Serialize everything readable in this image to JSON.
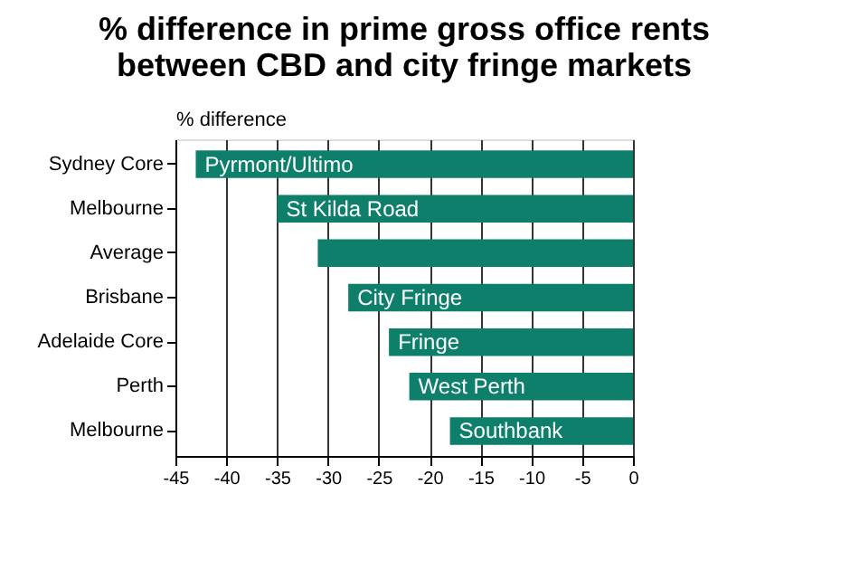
{
  "chart_data": {
    "type": "bar",
    "orientation": "horizontal",
    "title": "% difference in prime gross office rents\nbetween CBD and city fringe markets",
    "xlabel": "% difference",
    "categories": [
      "Sydney Core",
      "Melbourne",
      "Average",
      "Brisbane",
      "Adelaide Core",
      "Perth",
      "Melbourne"
    ],
    "values": [
      -43,
      -35,
      -31,
      -28,
      -24,
      -22,
      -18
    ],
    "value_labels": [
      "Pyrmont/Ultimo",
      "St Kilda Road",
      null,
      "City Fringe",
      "Fringe",
      "West Perth",
      "Southbank"
    ],
    "color": "#0e7f6b",
    "xlim": [
      -45,
      0
    ],
    "xticks": [
      -45,
      -40,
      -35,
      -30,
      -25,
      -20,
      -15,
      -10,
      -5,
      0
    ],
    "grid": "x"
  }
}
